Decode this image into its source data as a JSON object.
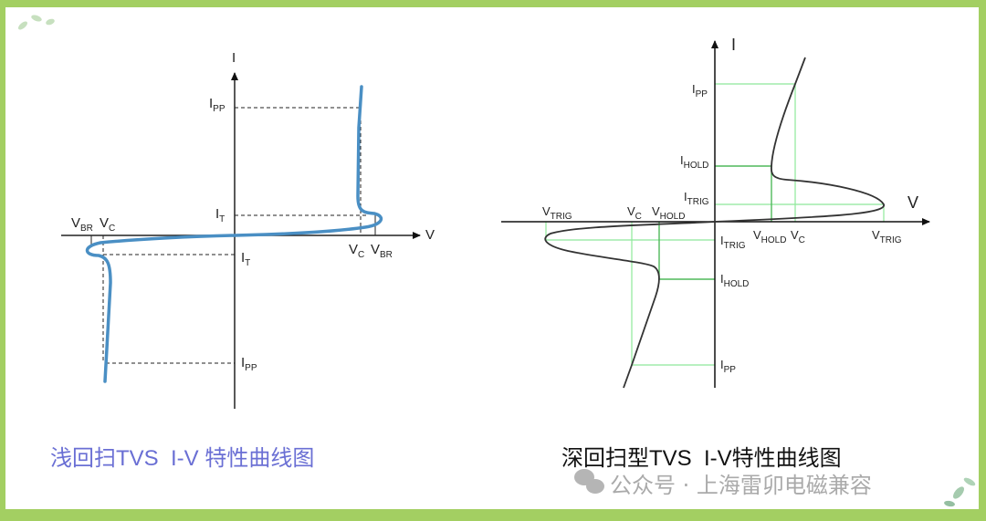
{
  "left_diagram": {
    "caption": "浅回扫TVS  I-V 特性曲线图",
    "caption_color": "#6a6fd4",
    "curve_color": "#4a8fc4",
    "axis_i": "I",
    "axis_v": "V",
    "labels": {
      "ipp_top": {
        "main": "I",
        "sub": "PP"
      },
      "it_top": {
        "main": "I",
        "sub": "T"
      },
      "vbr_left": {
        "main": "V",
        "sub": "BR"
      },
      "vc_left": {
        "main": "V",
        "sub": "C"
      },
      "vc_right": {
        "main": "V",
        "sub": "C"
      },
      "vbr_right": {
        "main": "V",
        "sub": "BR"
      },
      "it_bottom": {
        "main": "I",
        "sub": "T"
      },
      "ipp_bottom": {
        "main": "I",
        "sub": "PP"
      }
    }
  },
  "right_diagram": {
    "caption": "深回扫型TVS  I-V特性曲线图",
    "guide_color": "#8ee89a",
    "axis_i": "I",
    "axis_v": "V",
    "labels": {
      "ipp_top": {
        "main": "I",
        "sub": "PP"
      },
      "ihold_top": {
        "main": "I",
        "sub": "HOLD"
      },
      "itrig_top": {
        "main": "I",
        "sub": "TRIG"
      },
      "vtrig_left": {
        "main": "V",
        "sub": "TRIG"
      },
      "vc_left": {
        "main": "V",
        "sub": "C"
      },
      "vhold_left": {
        "main": "V",
        "sub": "HOLD"
      },
      "vhold_right": {
        "main": "V",
        "sub": "HOLD"
      },
      "vc_right": {
        "main": "V",
        "sub": "C"
      },
      "vtrig_right": {
        "main": "V",
        "sub": "TRIG"
      },
      "itrig_bottom": {
        "main": "I",
        "sub": "TRIG"
      },
      "ihold_bottom": {
        "main": "I",
        "sub": "HOLD"
      },
      "ipp_bottom": {
        "main": "I",
        "sub": "PP"
      }
    }
  },
  "watermark": "公众号 · 上海雷卯电磁兼容",
  "border_color": "#a3cf62"
}
